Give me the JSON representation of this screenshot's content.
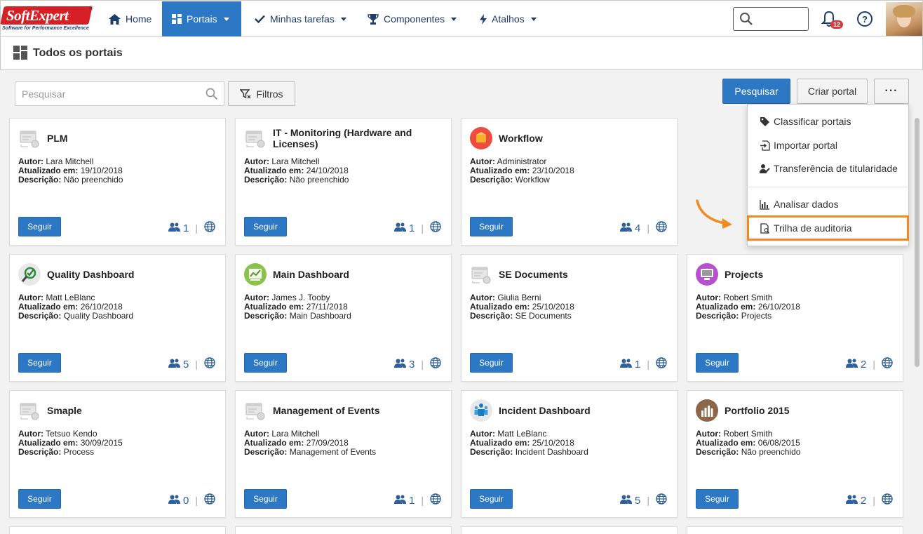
{
  "brand": {
    "name": "SoftExpert",
    "reg": "®",
    "tagline": "Software for Performance Excellence"
  },
  "nav": {
    "home": "Home",
    "portais": "Portais",
    "tarefas": "Minhas tarefas",
    "componentes": "Componentes",
    "atalhos": "Atalhos"
  },
  "header": {
    "notifications_count": "12",
    "help": "?"
  },
  "page": {
    "title": "Todos os portais"
  },
  "toolbar": {
    "search_placeholder": "Pesquisar",
    "filters": "Filtros",
    "search_button": "Pesquisar",
    "create_button": "Criar portal",
    "more_button": "···"
  },
  "menu": {
    "items": [
      {
        "label": "Classificar portais",
        "icon": "tag-icon"
      },
      {
        "label": "Importar portal",
        "icon": "import-icon"
      },
      {
        "label": "Transferência de titularidade",
        "icon": "user-transfer-icon"
      },
      {
        "label": "Analisar dados",
        "icon": "bar-chart-icon"
      },
      {
        "label": "Trilha de auditoria",
        "icon": "audit-icon"
      }
    ],
    "highlight_color": "#f08a1c"
  },
  "labels": {
    "author": "Autor:",
    "updated": "Atualizado em:",
    "description": "Descrição:",
    "follow": "Seguir"
  },
  "portals": [
    {
      "title": "PLM",
      "author": "Lara Mitchell",
      "updated": "19/10/2018",
      "description": "Não preenchido",
      "followers": "1",
      "icon": "generic-portal-icon"
    },
    {
      "title": "IT - Monitoring (Hardware and Licenses)",
      "author": "Lara Mitchell",
      "updated": "24/10/2018",
      "description": "Não preenchido",
      "followers": "1",
      "icon": "generic-portal-icon"
    },
    {
      "title": "Workflow",
      "author": "Administrator",
      "updated": "23/10/2018",
      "description": "Workflow",
      "followers": "4",
      "icon": "workflow-icon"
    },
    {
      "title": "Quality Dashboard",
      "author": "Matt LeBlanc",
      "updated": "26/10/2018",
      "description": "Quality Dashboard",
      "followers": "5",
      "icon": "quality-icon"
    },
    {
      "title": "Main Dashboard",
      "author": "James J. Tooby",
      "updated": "27/11/2018",
      "description": "Main Dashboard",
      "followers": "3",
      "icon": "dashboard-icon"
    },
    {
      "title": "SE Documents",
      "author": "Giulia Berni",
      "updated": "25/10/2018",
      "description": "SE Documents",
      "followers": "1",
      "icon": "generic-portal-icon"
    },
    {
      "title": "Projects",
      "author": "Robert Smith",
      "updated": "26/10/2018",
      "description": "Projects",
      "followers": "2",
      "icon": "projects-icon"
    },
    {
      "title": "Smaple",
      "author": "Tetsuo Kendo",
      "updated": "30/09/2015",
      "description": "Process",
      "followers": "0",
      "icon": "generic-portal-icon"
    },
    {
      "title": "Management of Events",
      "author": "Lara Mitchell",
      "updated": "27/09/2018",
      "description": "Management of Events",
      "followers": "1",
      "icon": "generic-portal-icon"
    },
    {
      "title": "Incident Dashboard",
      "author": "Matt LeBlanc",
      "updated": "25/10/2018",
      "description": "Incident Dashboard",
      "followers": "5",
      "icon": "incident-icon"
    },
    {
      "title": "Portfolio 2015",
      "author": "Robert Smith",
      "updated": "06/08/2015",
      "description": "Não preenchido",
      "followers": "2",
      "icon": "portfolio-icon"
    }
  ],
  "colors": {
    "primary": "#2d78c4",
    "nav_text": "#1f3d6b",
    "brand_red": "#d71f26"
  }
}
